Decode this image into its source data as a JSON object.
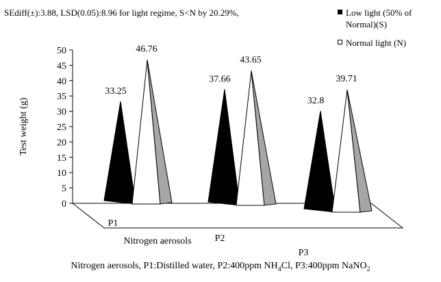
{
  "header_text": "SEdiff(±):3.88, LSD(0.05):8.96 for light regime, S<N by 20.29%,",
  "caption": {
    "prefix": "Nitrogen aerosols,  P1:Distilled  water,  P2:400ppm  NH",
    "sub1": "4",
    "middle": "Cl,  P3:400ppm  NaNO",
    "sub2": "2"
  },
  "colors": {
    "low_light": "#000000",
    "normal_light": "#ffffff",
    "side_face": "#a6a6a6",
    "grid": "#000000"
  },
  "chart_data": {
    "type": "bar",
    "subtype": "3d-cone",
    "categories": [
      "P1",
      "P2",
      "P3"
    ],
    "series": [
      {
        "name": "Low light (50% of Normal)(S)",
        "values": [
          33.25,
          37.66,
          32.8
        ]
      },
      {
        "name": "Normal light (N)",
        "values": [
          46.76,
          43.65,
          39.71
        ]
      }
    ],
    "data_labels": [
      [
        "33.25",
        "37.66",
        "32.8"
      ],
      [
        "46.76",
        "43.65",
        "39.71"
      ]
    ],
    "xlabel": "Nitrogen aerosols",
    "ylabel": "Test weight (g)",
    "ylim": [
      0,
      50
    ],
    "yticks": [
      0,
      5,
      10,
      15,
      20,
      25,
      30,
      35,
      40,
      45,
      50
    ],
    "grid": false,
    "legend_position": "top-right"
  }
}
